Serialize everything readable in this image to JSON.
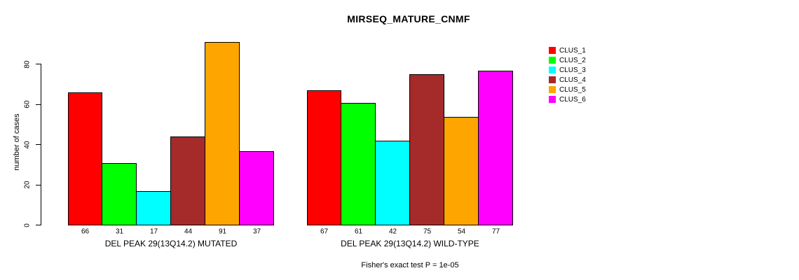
{
  "chart_data": {
    "type": "bar",
    "title": "MIRSEQ_MATURE_CNMF",
    "ylabel": "number of cases",
    "xlabel": "",
    "ylim": [
      0,
      95
    ],
    "yticks": [
      0,
      20,
      40,
      60,
      80
    ],
    "grid": false,
    "legend_position": "right-outside",
    "legend_entries": [
      "CLUS_1",
      "CLUS_2",
      "CLUS_3",
      "CLUS_4",
      "CLUS_5",
      "CLUS_6"
    ],
    "colors": [
      "#FF0000",
      "#00FF00",
      "#00FFFF",
      "#A52A2A",
      "#FFA500",
      "#FF00FF"
    ],
    "groups": [
      {
        "label": "DEL PEAK 29(13Q14.2) MUTATED",
        "values": [
          66,
          31,
          17,
          44,
          91,
          37
        ]
      },
      {
        "label": "DEL PEAK 29(13Q14.2) WILD-TYPE",
        "values": [
          67,
          61,
          42,
          75,
          54,
          77
        ]
      }
    ],
    "footnote": "Fisher's exact test P = 1e-05"
  }
}
